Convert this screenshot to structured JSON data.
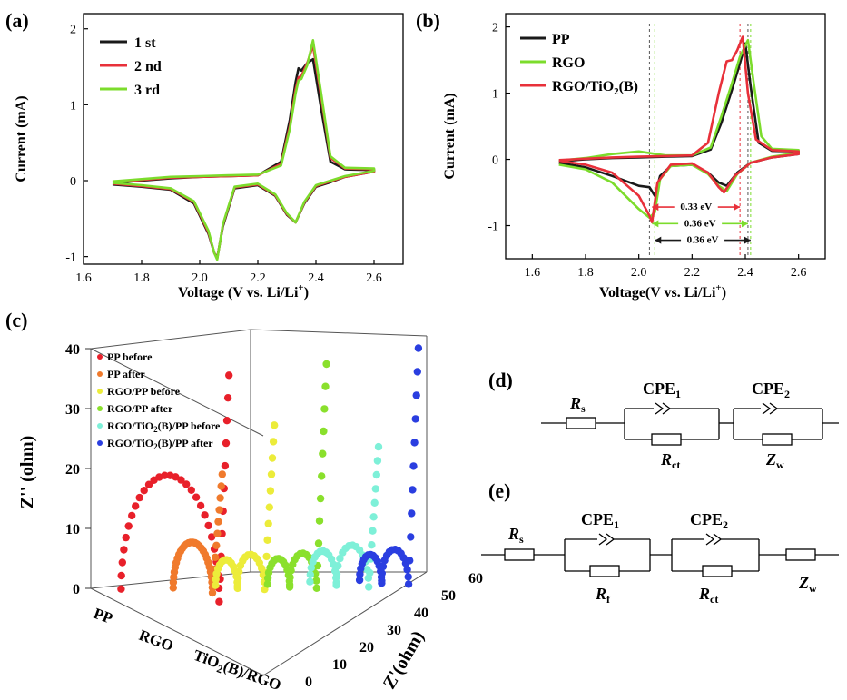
{
  "panels": {
    "a": {
      "label": "(a)",
      "chart_data": {
        "type": "line",
        "xlabel": "Voltage (V vs. Li/Li",
        "xlabel_sup": "+",
        "xlabel_end": ")",
        "ylabel": "Current (mA)",
        "xlim": [
          1.6,
          2.7
        ],
        "ylim": [
          -1.1,
          2.2
        ],
        "xticks": [
          "1.6",
          "1.8",
          "2.0",
          "2.2",
          "2.4",
          "2.6"
        ],
        "yticks": [
          "-1",
          "0",
          "1",
          "2"
        ],
        "legend_position": "top-left",
        "series": [
          {
            "name": "1 st",
            "color": "#1a1a1a",
            "x": [
              1.7,
              1.8,
              1.9,
              1.98,
              2.03,
              2.05,
              2.06,
              2.08,
              2.12,
              2.2,
              2.26,
              2.3,
              2.33,
              2.36,
              2.4,
              2.45,
              2.5,
              2.6,
              2.6,
              2.5,
              2.45,
              2.42,
              2.39,
              2.37,
              2.35,
              2.34,
              2.33,
              2.31,
              2.28,
              2.2,
              2.1,
              2.0,
              1.9,
              1.8,
              1.7
            ],
            "y": [
              -0.05,
              -0.08,
              -0.12,
              -0.3,
              -0.7,
              -0.95,
              -1.02,
              -0.6,
              -0.1,
              -0.06,
              -0.2,
              -0.45,
              -0.55,
              -0.3,
              -0.08,
              -0.02,
              0.05,
              0.12,
              0.14,
              0.15,
              0.25,
              0.9,
              1.6,
              1.55,
              1.45,
              1.48,
              1.3,
              0.8,
              0.25,
              0.07,
              0.06,
              0.05,
              0.03,
              0.0,
              -0.03
            ]
          },
          {
            "name": "2 nd",
            "color": "#e8303a",
            "x": [
              1.7,
              1.8,
              1.9,
              1.98,
              2.03,
              2.05,
              2.06,
              2.08,
              2.12,
              2.2,
              2.26,
              2.3,
              2.33,
              2.36,
              2.4,
              2.45,
              2.5,
              2.6,
              2.6,
              2.5,
              2.45,
              2.42,
              2.39,
              2.37,
              2.35,
              2.34,
              2.33,
              2.31,
              2.28,
              2.2,
              2.1,
              2.0,
              1.9,
              1.8,
              1.7
            ],
            "y": [
              -0.04,
              -0.07,
              -0.11,
              -0.28,
              -0.68,
              -0.95,
              -1.03,
              -0.58,
              -0.09,
              -0.05,
              -0.19,
              -0.44,
              -0.55,
              -0.29,
              -0.07,
              -0.01,
              0.05,
              0.12,
              0.15,
              0.16,
              0.3,
              1.05,
              1.78,
              1.55,
              1.38,
              1.36,
              1.2,
              0.72,
              0.22,
              0.07,
              0.06,
              0.05,
              0.04,
              0.01,
              -0.02
            ]
          },
          {
            "name": "3 rd",
            "color": "#7cdc2c",
            "x": [
              1.7,
              1.8,
              1.9,
              1.98,
              2.03,
              2.05,
              2.06,
              2.08,
              2.12,
              2.2,
              2.26,
              2.3,
              2.33,
              2.36,
              2.4,
              2.45,
              2.5,
              2.6,
              2.6,
              2.5,
              2.45,
              2.42,
              2.39,
              2.37,
              2.35,
              2.34,
              2.33,
              2.31,
              2.28,
              2.2,
              2.1,
              2.0,
              1.9,
              1.8,
              1.7
            ],
            "y": [
              -0.03,
              -0.06,
              -0.1,
              -0.27,
              -0.66,
              -0.95,
              -1.04,
              -0.57,
              -0.08,
              -0.04,
              -0.18,
              -0.43,
              -0.55,
              -0.28,
              -0.06,
              0.0,
              0.06,
              0.13,
              0.16,
              0.17,
              0.32,
              1.1,
              1.85,
              1.52,
              1.34,
              1.32,
              1.15,
              0.68,
              0.2,
              0.08,
              0.07,
              0.06,
              0.05,
              0.02,
              -0.01
            ]
          }
        ]
      }
    },
    "b": {
      "label": "(b)",
      "chart_data": {
        "type": "line",
        "xlabel": "Voltage(V vs. Li/Li",
        "xlabel_sup": "+",
        "xlabel_end": ")",
        "ylabel": "Current (mA)",
        "xlim": [
          1.5,
          2.7
        ],
        "ylim": [
          -1.5,
          2.2
        ],
        "xticks": [
          "1.6",
          "1.8",
          "2.0",
          "2.2",
          "2.4",
          "2.6"
        ],
        "yticks": [
          "-1",
          "0",
          "1",
          "2"
        ],
        "legend_position": "top-left",
        "series": [
          {
            "name": "PP",
            "color": "#1a1a1a",
            "x": [
              1.7,
              1.8,
              1.9,
              2.0,
              2.04,
              2.06,
              2.08,
              2.12,
              2.2,
              2.26,
              2.3,
              2.33,
              2.37,
              2.42,
              2.5,
              2.6,
              2.6,
              2.5,
              2.45,
              2.42,
              2.4,
              2.38,
              2.35,
              2.31,
              2.27,
              2.2,
              2.1,
              2.0,
              1.9,
              1.8,
              1.7
            ],
            "y": [
              -0.05,
              -0.12,
              -0.25,
              -0.4,
              -0.42,
              -0.55,
              -0.25,
              -0.1,
              -0.08,
              -0.2,
              -0.35,
              -0.4,
              -0.2,
              -0.05,
              0.03,
              0.08,
              0.12,
              0.13,
              0.25,
              1.1,
              1.75,
              1.45,
              1.05,
              0.55,
              0.15,
              0.05,
              0.04,
              0.03,
              0.02,
              0.0,
              -0.03
            ]
          },
          {
            "name": "RGO",
            "color": "#7cdc2c",
            "x": [
              1.7,
              1.8,
              1.9,
              2.0,
              2.04,
              2.06,
              2.08,
              2.12,
              2.2,
              2.26,
              2.3,
              2.33,
              2.37,
              2.42,
              2.5,
              2.6,
              2.6,
              2.5,
              2.46,
              2.43,
              2.41,
              2.38,
              2.35,
              2.31,
              2.27,
              2.2,
              2.1,
              2.0,
              1.9,
              1.8,
              1.7
            ],
            "y": [
              -0.08,
              -0.15,
              -0.35,
              -0.75,
              -0.88,
              -0.8,
              -0.3,
              -0.1,
              -0.08,
              -0.22,
              -0.4,
              -0.48,
              -0.22,
              -0.05,
              0.04,
              0.1,
              0.14,
              0.16,
              0.35,
              1.2,
              1.8,
              1.55,
              1.15,
              0.65,
              0.18,
              0.06,
              0.06,
              0.12,
              0.08,
              0.02,
              -0.02
            ]
          },
          {
            "name": "RGO/TiO",
            "name_sub": "2",
            "name_end": "(B)",
            "color": "#e8303a",
            "x": [
              1.7,
              1.8,
              1.9,
              2.0,
              2.04,
              2.05,
              2.07,
              2.12,
              2.2,
              2.26,
              2.3,
              2.32,
              2.36,
              2.42,
              2.5,
              2.6,
              2.6,
              2.5,
              2.44,
              2.41,
              2.39,
              2.37,
              2.35,
              2.33,
              2.3,
              2.26,
              2.2,
              2.1,
              2.0,
              1.9,
              1.8,
              1.7
            ],
            "y": [
              -0.02,
              -0.08,
              -0.2,
              -0.55,
              -0.85,
              -0.95,
              -0.35,
              -0.08,
              -0.06,
              -0.2,
              -0.42,
              -0.5,
              -0.25,
              -0.05,
              0.03,
              0.08,
              0.12,
              0.14,
              0.3,
              1.0,
              1.85,
              1.65,
              1.5,
              1.48,
              1.0,
              0.25,
              0.06,
              0.05,
              0.04,
              0.03,
              0.01,
              -0.01
            ]
          }
        ],
        "annotations": [
          {
            "text": "0.33 eV",
            "x1": 2.05,
            "x2": 2.38,
            "y": -0.72,
            "color": "#e8303a"
          },
          {
            "text": "0.36 eV",
            "x1": 2.05,
            "x2": 2.41,
            "y": -0.97,
            "color": "#7cdc2c"
          },
          {
            "text": "0.36 eV",
            "x1": 2.06,
            "x2": 2.42,
            "y": -1.22,
            "color": "#1a1a1a"
          }
        ]
      }
    },
    "c": {
      "label": "(c)",
      "chart_data": {
        "type": "scatter",
        "ylabel": "Z'' (ohm)",
        "zlabel": "Z'(ohm)",
        "zlim": [
          0,
          60
        ],
        "yticks": [
          "0",
          "10",
          "20",
          "30",
          "40"
        ],
        "zticks": [
          "0",
          "10",
          "20",
          "30",
          "40",
          "50",
          "60"
        ],
        "categories": [
          "PP",
          "RGO",
          "TiO2(B)/RGO"
        ],
        "category_labels": [
          {
            "text": "PP"
          },
          {
            "text": "RGO"
          },
          {
            "text": "TiO",
            "sub": "2",
            "end": "(B)/RGO"
          }
        ],
        "legend_position": "top-left",
        "series": [
          {
            "name": "PP before",
            "color": "#e8202a",
            "shape": "semicircle",
            "r_ct": 20,
            "r_s": 2,
            "tail_end": 38
          },
          {
            "name": "PP after",
            "color": "#f07a2c",
            "shape": "semicircle",
            "r_ct": 8,
            "r_s": 4,
            "tail_end": 20
          },
          {
            "name": "RGO/PP before",
            "color": "#ecec3a",
            "shape": "double",
            "r_ct": 10,
            "r_s": 2,
            "tail_end": 28
          },
          {
            "name": "RGO/PP after",
            "color": "#8ae02c",
            "shape": "double",
            "r_ct": 10,
            "r_s": 4,
            "tail_end": 38
          },
          {
            "name": "RGO/TiO",
            "name_sub": "2",
            "name_end": "(B)/PP before",
            "color": "#7ef0d8",
            "shape": "double",
            "r_ct": 12,
            "r_s": 2,
            "tail_end": 24
          },
          {
            "name": "RGO/TiO",
            "name_sub": "2",
            "name_end": "(B)/PP after",
            "color": "#2a3ee0",
            "shape": "double",
            "r_ct": 10,
            "r_s": 3,
            "tail_end": 40
          }
        ]
      }
    },
    "d": {
      "label": "(d)",
      "circuit": {
        "rs": "R",
        "rs_sub": "s",
        "cpe1": "CPE",
        "cpe1_sub": "1",
        "rct": "R",
        "rct_sub": "ct",
        "cpe2": "CPE",
        "cpe2_sub": "2",
        "zw": "Z",
        "zw_sub": "w"
      }
    },
    "e": {
      "label": "(e)",
      "circuit": {
        "rs": "R",
        "rs_sub": "s",
        "cpe1": "CPE",
        "cpe1_sub": "1",
        "rf": "R",
        "rf_sub": "f",
        "cpe2": "CPE",
        "cpe2_sub": "2",
        "rct": "R",
        "rct_sub": "ct",
        "zw": "Z",
        "zw_sub": "w"
      }
    }
  }
}
